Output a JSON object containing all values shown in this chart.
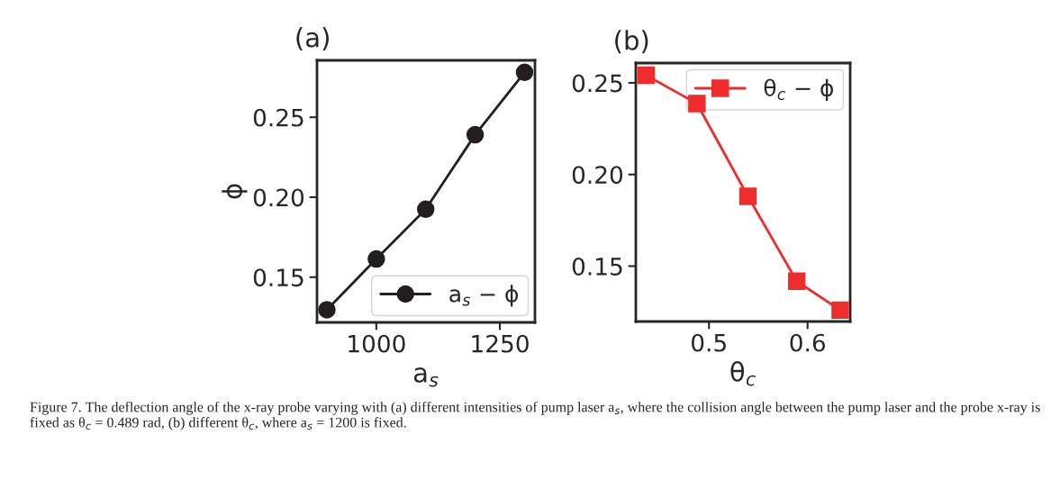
{
  "chart_data": [
    {
      "type": "line",
      "title": "(a)",
      "xlabel": "a$_{s}$",
      "ylabel": "ϕ",
      "x": [
        900,
        1000,
        1100,
        1200,
        1300
      ],
      "series": [
        {
          "name": "a$_{s}$ − ϕ",
          "color": "#231f20",
          "values": [
            0.1296,
            0.1614,
            0.1925,
            0.2391,
            0.2781
          ]
        }
      ],
      "xlim": [
        880,
        1321
      ],
      "ylim": [
        0.1217,
        0.2856
      ],
      "xticks": [
        1000,
        1250
      ],
      "yticks": [
        {
          "value": 0.15,
          "label": "0.15"
        },
        {
          "value": 0.2,
          "label": "0.20"
        },
        {
          "value": 0.25,
          "label": "0.25"
        }
      ],
      "marker": "circle",
      "line_style": "solid",
      "legend": "bottom right",
      "grid": false,
      "annotations": [
        "Figure 7. The deflection angle of the x-ray probe varying with (a) different intensities of pump laser a$_{s}$, where the collision angle between the pump laser and the probe x-ray is fixed as θ$_{c}$ = 0.489 rad, (b) different θ$_{c}$, where a$_{s}$ = 1200 is fixed."
      ]
    },
    {
      "type": "line",
      "title": "(b)",
      "xlabel": "θ$_{c}$",
      "x": [
        0.4362,
        0.4878,
        0.5395,
        0.589,
        0.6331
      ],
      "series": [
        {
          "name": "θ$_{c}$ − ϕ",
          "color": "#ee2c2c",
          "values": [
            0.2542,
            0.2387,
            0.1881,
            0.1418,
            0.126
          ]
        }
      ],
      "xlim": [
        0.4258,
        0.6432
      ],
      "ylim": [
        0.1198,
        0.2608
      ],
      "xticks": [
        0.5,
        0.6
      ],
      "yticks": [
        {
          "value": 0.15,
          "label": "0.15"
        },
        {
          "value": 0.2,
          "label": "0.20"
        },
        {
          "value": 0.25,
          "label": "0.25"
        }
      ],
      "marker": "square",
      "line_style": "solid",
      "legend": "top right",
      "grid": false
    }
  ]
}
